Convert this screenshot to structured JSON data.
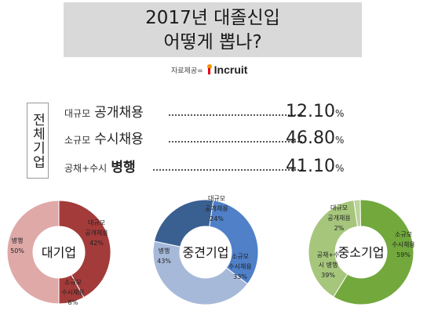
{
  "header": {
    "title_line1": "2017년 대졸신입",
    "title_line2": "어떻게 뽑나?"
  },
  "source": {
    "label": "자료제공=",
    "logo_text": "Incruit",
    "logo_icon": "incruit-logo-icon"
  },
  "summary": {
    "group_label": "전체기업",
    "rows": [
      {
        "prefix": "대규모",
        "label": "공개채용",
        "value": "12.10",
        "unit": "%"
      },
      {
        "prefix": "소규모",
        "label": "수시채용",
        "value": "46.80",
        "unit": "%"
      },
      {
        "prefix": "공채+수시",
        "label": "병행",
        "value": "41.10",
        "unit": "%"
      }
    ]
  },
  "colors": {
    "large": {
      "public": "#a33b3a",
      "both": "#dfa9a7"
    },
    "mid": {
      "public": "#3a5f91",
      "rolling": "#4f80c8",
      "both": "#a7b9d9"
    },
    "small": {
      "public": "#bcd39a",
      "rolling": "#72a83c",
      "both": "#a6c67c"
    }
  },
  "chart_data": [
    {
      "type": "pie",
      "title": "대기업",
      "slices": [
        {
          "label_lines": [
            "대규모",
            "공개채용"
          ],
          "value": 42,
          "value_label": "42%"
        },
        {
          "label_lines": [
            "소규모",
            "수시채용"
          ],
          "value": 8,
          "value_label": "8%"
        },
        {
          "label_lines": [
            "병행"
          ],
          "value": 50,
          "value_label": "50%"
        }
      ]
    },
    {
      "type": "pie",
      "title": "중견기업",
      "slices": [
        {
          "label_lines": [
            "대규모",
            "공개채용"
          ],
          "value": 24,
          "value_label": "24%"
        },
        {
          "label_lines": [
            "소규모",
            "수시채용"
          ],
          "value": 33,
          "value_label": "33%"
        },
        {
          "label_lines": [
            "병행"
          ],
          "value": 43,
          "value_label": "43%"
        }
      ]
    },
    {
      "type": "pie",
      "title": "중소기업",
      "slices": [
        {
          "label_lines": [
            "대규모",
            "공개채용"
          ],
          "value": 2,
          "value_label": "2%"
        },
        {
          "label_lines": [
            "소규모",
            "수시채용"
          ],
          "value": 59,
          "value_label": "59%"
        },
        {
          "label_lines": [
            "공채+수",
            "시 병행"
          ],
          "value": 39,
          "value_label": "39%"
        }
      ]
    }
  ]
}
